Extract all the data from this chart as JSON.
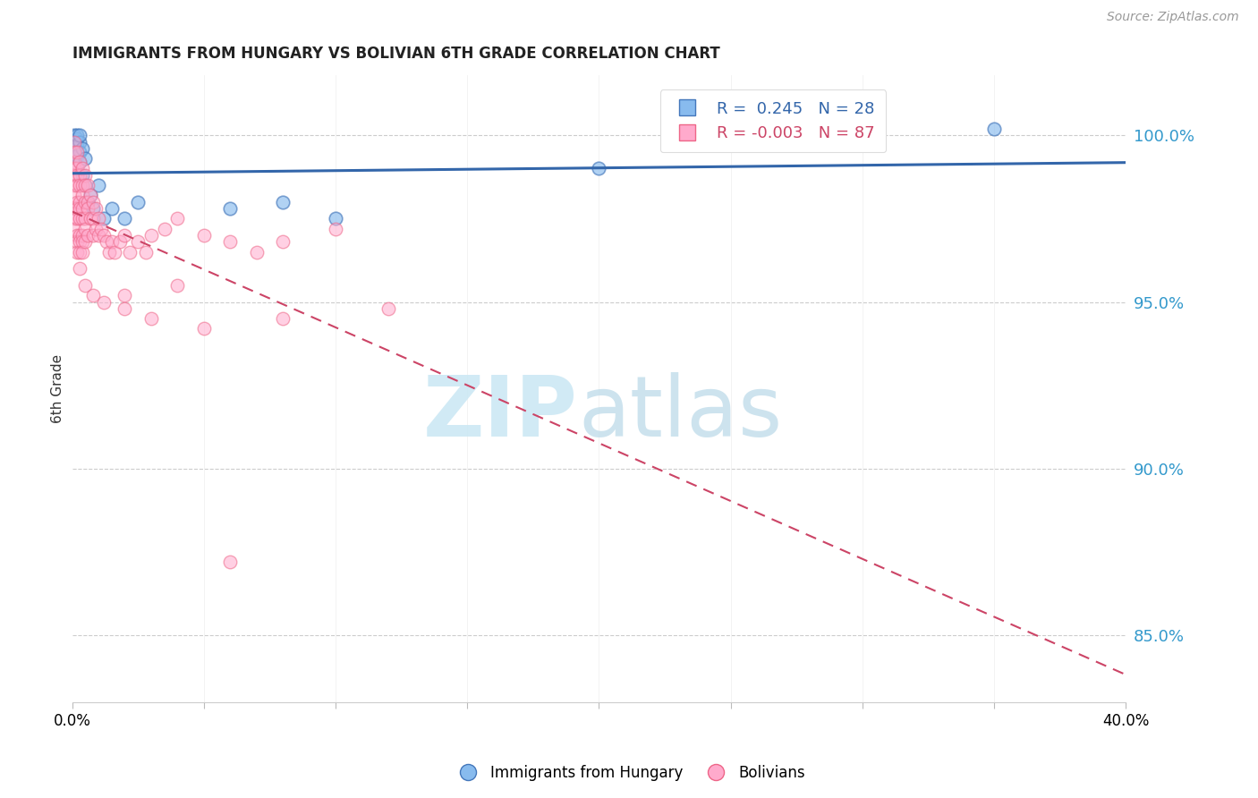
{
  "title": "IMMIGRANTS FROM HUNGARY VS BOLIVIAN 6TH GRADE CORRELATION CHART",
  "source": "Source: ZipAtlas.com",
  "ylabel": "6th Grade",
  "right_yticks": [
    85.0,
    90.0,
    95.0,
    100.0
  ],
  "xlim": [
    0.0,
    0.4
  ],
  "ylim": [
    83.0,
    101.8
  ],
  "legend_hungary": "Immigrants from Hungary",
  "legend_bolivia": "Bolivians",
  "R_hungary": 0.245,
  "N_hungary": 28,
  "R_bolivia": -0.003,
  "N_bolivia": 87,
  "blue_color": "#88BBEE",
  "pink_color": "#FFAACC",
  "blue_edge_color": "#4477BB",
  "pink_edge_color": "#EE6688",
  "blue_line_color": "#3366AA",
  "pink_line_color": "#CC4466",
  "background_color": "#FFFFFF",
  "hungary_x": [
    0.001,
    0.001,
    0.001,
    0.002,
    0.002,
    0.002,
    0.002,
    0.003,
    0.003,
    0.003,
    0.003,
    0.004,
    0.004,
    0.005,
    0.005,
    0.006,
    0.007,
    0.008,
    0.01,
    0.012,
    0.015,
    0.02,
    0.025,
    0.06,
    0.08,
    0.1,
    0.2,
    0.35
  ],
  "hungary_y": [
    99.8,
    100.0,
    99.5,
    99.9,
    99.7,
    100.0,
    99.4,
    99.8,
    99.5,
    100.0,
    99.2,
    99.6,
    98.8,
    99.3,
    98.5,
    98.0,
    98.2,
    97.8,
    98.5,
    97.5,
    97.8,
    97.5,
    98.0,
    97.8,
    98.0,
    97.5,
    99.0,
    100.2
  ],
  "bolivia_x": [
    0.001,
    0.001,
    0.001,
    0.001,
    0.001,
    0.001,
    0.001,
    0.001,
    0.001,
    0.001,
    0.002,
    0.002,
    0.002,
    0.002,
    0.002,
    0.002,
    0.002,
    0.002,
    0.002,
    0.002,
    0.003,
    0.003,
    0.003,
    0.003,
    0.003,
    0.003,
    0.003,
    0.003,
    0.003,
    0.003,
    0.004,
    0.004,
    0.004,
    0.004,
    0.004,
    0.004,
    0.004,
    0.004,
    0.005,
    0.005,
    0.005,
    0.005,
    0.005,
    0.005,
    0.006,
    0.006,
    0.006,
    0.006,
    0.007,
    0.007,
    0.008,
    0.008,
    0.008,
    0.009,
    0.009,
    0.01,
    0.01,
    0.011,
    0.012,
    0.013,
    0.014,
    0.015,
    0.016,
    0.018,
    0.02,
    0.022,
    0.025,
    0.028,
    0.03,
    0.035,
    0.04,
    0.05,
    0.06,
    0.07,
    0.08,
    0.1,
    0.005,
    0.008,
    0.012,
    0.02,
    0.03,
    0.05,
    0.08,
    0.12,
    0.02,
    0.04,
    0.06
  ],
  "bolivia_y": [
    99.8,
    99.5,
    99.2,
    99.0,
    98.8,
    98.5,
    98.2,
    97.8,
    97.5,
    97.2,
    99.5,
    99.0,
    98.8,
    98.5,
    98.0,
    97.8,
    97.5,
    97.0,
    96.8,
    96.5,
    99.2,
    98.8,
    98.5,
    98.0,
    97.8,
    97.5,
    97.0,
    96.8,
    96.5,
    96.0,
    99.0,
    98.5,
    98.2,
    97.8,
    97.5,
    97.0,
    96.8,
    96.5,
    98.8,
    98.5,
    98.0,
    97.5,
    97.2,
    96.8,
    98.5,
    98.0,
    97.8,
    97.0,
    98.2,
    97.5,
    98.0,
    97.5,
    97.0,
    97.8,
    97.2,
    97.5,
    97.0,
    97.2,
    97.0,
    96.8,
    96.5,
    96.8,
    96.5,
    96.8,
    97.0,
    96.5,
    96.8,
    96.5,
    97.0,
    97.2,
    97.5,
    97.0,
    96.8,
    96.5,
    96.8,
    97.2,
    95.5,
    95.2,
    95.0,
    94.8,
    94.5,
    94.2,
    94.5,
    94.8,
    95.2,
    95.5,
    87.2
  ]
}
